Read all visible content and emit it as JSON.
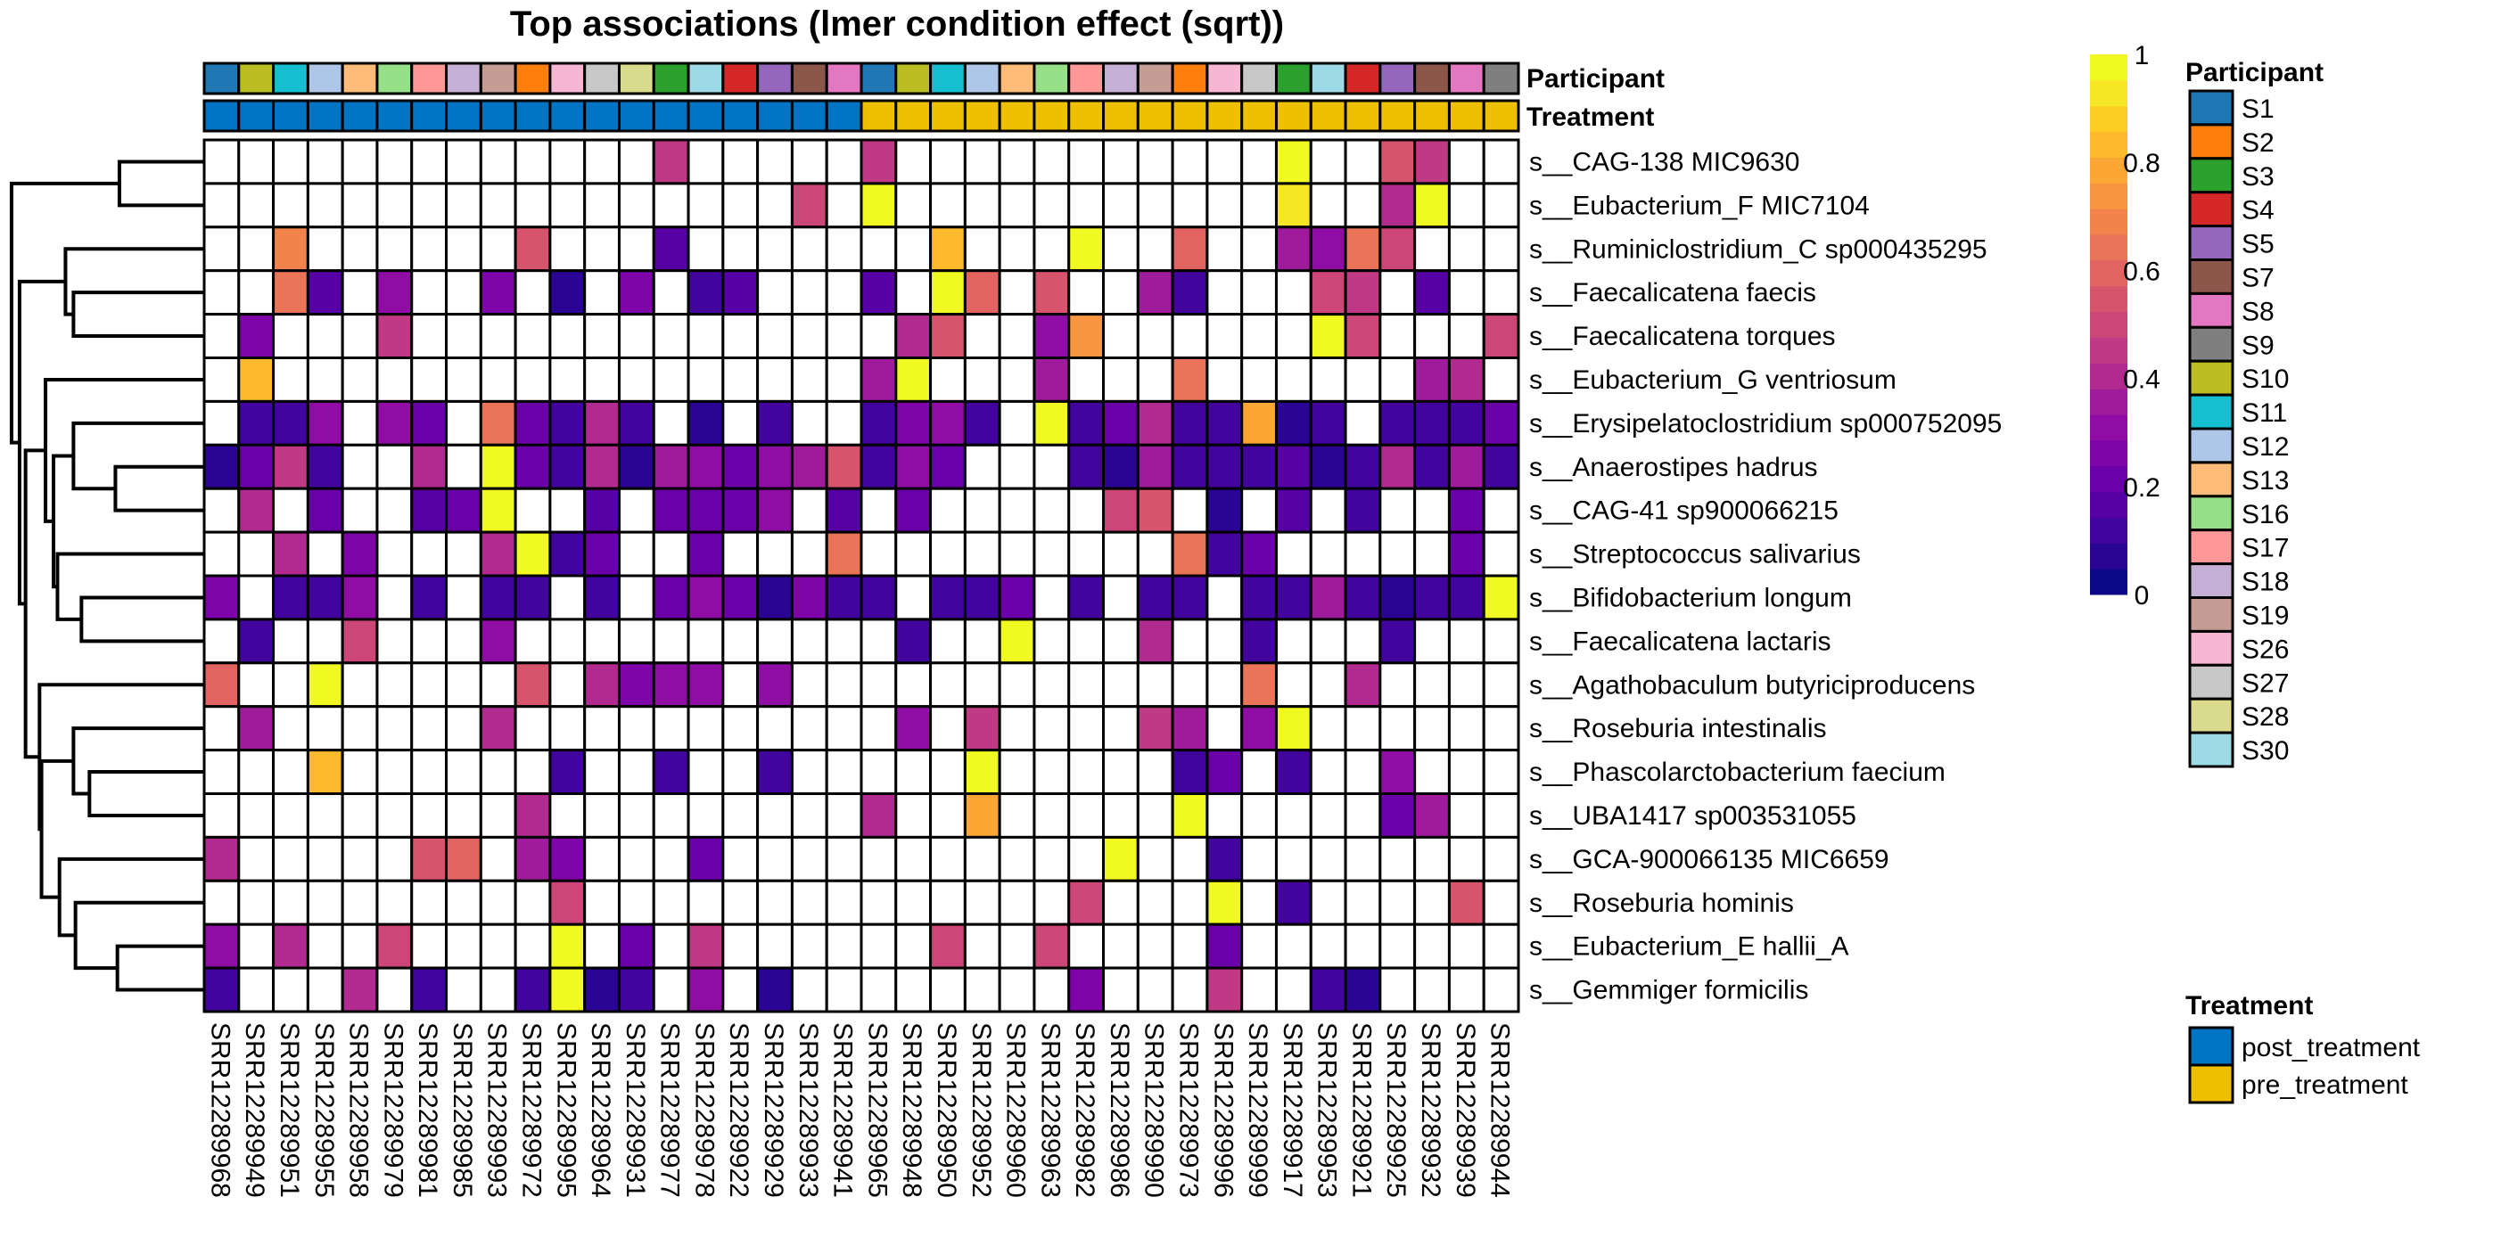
{
  "chart_data": {
    "type": "heatmap",
    "title": "Top associations (lmer condition effect (sqrt))",
    "value_range": [
      0,
      1
    ],
    "colormap": "plasma",
    "colorbar_ticks": [
      "0",
      "0.2",
      "0.4",
      "0.6",
      "0.8",
      "1"
    ],
    "colorbar_tick_values": [
      0,
      0.2,
      0.4,
      0.6,
      0.8,
      1
    ],
    "missing_color": "#ffffff",
    "columns": [
      "SRR12289968",
      "SRR12289949",
      "SRR12289951",
      "SRR12289955",
      "SRR12289958",
      "SRR12289979",
      "SRR12289981",
      "SRR12289985",
      "SRR12289993",
      "SRR12289972",
      "SRR12289995",
      "SRR12289964",
      "SRR12289931",
      "SRR12289977",
      "SRR12289978",
      "SRR12289922",
      "SRR12289929",
      "SRR12289933",
      "SRR12289941",
      "SRR12289965",
      "SRR12289948",
      "SRR12289950",
      "SRR12289952",
      "SRR12289960",
      "SRR12289963",
      "SRR12289982",
      "SRR12289986",
      "SRR12289990",
      "SRR12289973",
      "SRR12289996",
      "SRR12289999",
      "SRR12289917",
      "SRR12289953",
      "SRR12289921",
      "SRR12289925",
      "SRR12289932",
      "SRR12289939",
      "SRR12289944"
    ],
    "rows": [
      "s__CAG-138 MIC9630",
      "s__Eubacterium_F MIC7104",
      "s__Ruminiclostridium_C sp000435295",
      "s__Faecalicatena faecis",
      "s__Faecalicatena torques",
      "s__Eubacterium_G ventriosum",
      "s__Erysipelatoclostridium sp000752095",
      "s__Anaerostipes hadrus",
      "s__CAG-41 sp900066215",
      "s__Streptococcus salivarius",
      "s__Bifidobacterium longum",
      "s__Faecalicatena lactaris",
      "s__Agathobaculum butyriciproducens",
      "s__Roseburia intestinalis",
      "s__Phascolarctobacterium faecium",
      "s__UBA1417 sp003531055",
      "s__GCA-900066135 MIC6659",
      "s__Roseburia hominis",
      "s__Eubacterium_E hallii_A",
      "s__Gemmiger formicilis"
    ],
    "values": [
      [
        null,
        null,
        null,
        null,
        null,
        null,
        null,
        null,
        null,
        null,
        null,
        null,
        null,
        0.45,
        null,
        null,
        null,
        null,
        null,
        0.47,
        null,
        null,
        null,
        null,
        null,
        null,
        null,
        null,
        null,
        null,
        null,
        1.0,
        null,
        null,
        0.55,
        0.45,
        null,
        null
      ],
      [
        null,
        null,
        null,
        null,
        null,
        null,
        null,
        null,
        null,
        null,
        null,
        null,
        null,
        null,
        null,
        null,
        null,
        0.5,
        null,
        1.0,
        null,
        null,
        null,
        null,
        null,
        null,
        null,
        null,
        null,
        null,
        null,
        0.95,
        null,
        null,
        0.4,
        1.0,
        null,
        null
      ],
      [
        null,
        null,
        0.7,
        null,
        null,
        null,
        null,
        null,
        null,
        0.55,
        null,
        null,
        null,
        0.15,
        null,
        null,
        null,
        null,
        null,
        null,
        null,
        0.85,
        null,
        null,
        null,
        1.0,
        null,
        null,
        0.6,
        null,
        null,
        0.35,
        0.28,
        0.65,
        0.5,
        null,
        null,
        null
      ],
      [
        null,
        null,
        0.65,
        0.15,
        null,
        0.3,
        null,
        null,
        0.25,
        null,
        0.03,
        null,
        0.25,
        null,
        0.1,
        0.15,
        null,
        null,
        null,
        0.15,
        null,
        1.0,
        0.6,
        null,
        0.55,
        null,
        null,
        0.35,
        0.12,
        null,
        null,
        null,
        0.5,
        0.45,
        null,
        0.15,
        null,
        null
      ],
      [
        null,
        0.25,
        null,
        null,
        null,
        0.45,
        null,
        null,
        null,
        null,
        null,
        null,
        null,
        null,
        null,
        null,
        null,
        null,
        null,
        null,
        0.4,
        0.55,
        null,
        null,
        0.28,
        0.75,
        null,
        null,
        null,
        null,
        null,
        null,
        1.0,
        0.5,
        null,
        null,
        null,
        0.5
      ],
      [
        null,
        0.85,
        null,
        null,
        null,
        null,
        null,
        null,
        null,
        null,
        null,
        null,
        null,
        null,
        null,
        null,
        null,
        null,
        null,
        0.35,
        1.0,
        null,
        null,
        null,
        0.35,
        null,
        null,
        null,
        0.65,
        null,
        null,
        null,
        null,
        null,
        null,
        0.35,
        0.4,
        null
      ],
      [
        null,
        0.12,
        0.12,
        0.3,
        null,
        0.3,
        0.18,
        null,
        0.65,
        0.2,
        0.08,
        0.38,
        0.12,
        null,
        0.04,
        null,
        0.12,
        null,
        null,
        0.12,
        0.25,
        0.3,
        0.1,
        null,
        1.0,
        0.08,
        0.18,
        0.4,
        0.1,
        0.08,
        0.8,
        0.03,
        0.08,
        null,
        0.1,
        0.1,
        0.08,
        0.18
      ],
      [
        0.03,
        0.18,
        0.45,
        0.08,
        null,
        null,
        0.4,
        null,
        1.0,
        0.18,
        0.1,
        0.4,
        0.03,
        0.35,
        0.3,
        0.2,
        0.3,
        0.35,
        0.55,
        0.12,
        0.28,
        0.22,
        null,
        null,
        null,
        0.08,
        0.03,
        0.35,
        0.08,
        0.08,
        0.12,
        0.14,
        0.03,
        0.12,
        0.4,
        0.08,
        0.35,
        0.12
      ],
      [
        null,
        0.4,
        null,
        0.22,
        null,
        null,
        0.14,
        0.18,
        1.0,
        null,
        null,
        0.14,
        null,
        0.18,
        0.18,
        0.22,
        0.28,
        null,
        0.16,
        null,
        0.22,
        null,
        null,
        null,
        null,
        null,
        0.5,
        0.55,
        null,
        0.03,
        null,
        0.14,
        null,
        0.12,
        null,
        null,
        0.22,
        null
      ],
      [
        null,
        null,
        0.4,
        null,
        0.24,
        null,
        null,
        null,
        0.4,
        1.0,
        0.08,
        0.18,
        null,
        null,
        0.18,
        null,
        null,
        null,
        0.65,
        null,
        null,
        null,
        null,
        null,
        null,
        null,
        null,
        null,
        0.65,
        0.08,
        0.22,
        null,
        null,
        null,
        null,
        null,
        0.2,
        null
      ],
      [
        0.25,
        null,
        0.12,
        0.12,
        0.3,
        null,
        0.08,
        null,
        0.12,
        0.08,
        null,
        0.12,
        null,
        0.18,
        0.28,
        0.2,
        0.03,
        0.25,
        0.1,
        0.08,
        null,
        0.08,
        0.08,
        0.18,
        null,
        0.08,
        null,
        0.12,
        0.08,
        null,
        0.08,
        0.08,
        0.35,
        0.08,
        0.03,
        0.08,
        0.08,
        1.0
      ],
      [
        null,
        0.12,
        null,
        null,
        0.5,
        null,
        null,
        null,
        0.3,
        null,
        null,
        null,
        null,
        null,
        null,
        null,
        null,
        null,
        null,
        null,
        0.12,
        null,
        null,
        1.0,
        null,
        null,
        null,
        0.4,
        null,
        null,
        0.08,
        null,
        null,
        null,
        0.12,
        null,
        null,
        null
      ],
      [
        0.6,
        null,
        null,
        1.0,
        null,
        null,
        null,
        null,
        null,
        0.55,
        null,
        0.42,
        0.25,
        0.3,
        0.3,
        null,
        0.3,
        null,
        null,
        null,
        null,
        null,
        null,
        null,
        null,
        null,
        null,
        null,
        null,
        null,
        0.65,
        null,
        null,
        0.4,
        null,
        null,
        null,
        null
      ],
      [
        null,
        0.35,
        null,
        null,
        null,
        null,
        null,
        null,
        0.4,
        null,
        null,
        null,
        null,
        null,
        null,
        null,
        null,
        null,
        null,
        null,
        0.28,
        null,
        0.45,
        null,
        null,
        null,
        null,
        0.45,
        0.35,
        null,
        0.3,
        1.0,
        null,
        null,
        null,
        null,
        null,
        null
      ],
      [
        null,
        null,
        null,
        0.85,
        null,
        null,
        null,
        null,
        null,
        null,
        0.08,
        null,
        null,
        0.08,
        null,
        null,
        0.1,
        null,
        null,
        null,
        null,
        null,
        1.0,
        null,
        null,
        null,
        null,
        null,
        0.12,
        0.18,
        null,
        0.12,
        null,
        null,
        0.28,
        null,
        null,
        null
      ],
      [
        null,
        null,
        null,
        null,
        null,
        null,
        null,
        null,
        null,
        0.4,
        null,
        null,
        null,
        null,
        null,
        null,
        null,
        null,
        null,
        0.4,
        null,
        null,
        0.78,
        null,
        null,
        null,
        null,
        null,
        1.0,
        null,
        null,
        null,
        null,
        null,
        0.22,
        0.35,
        null,
        null
      ],
      [
        0.4,
        null,
        null,
        null,
        null,
        null,
        0.55,
        0.6,
        null,
        0.35,
        0.25,
        null,
        null,
        null,
        0.18,
        null,
        null,
        null,
        null,
        null,
        null,
        null,
        null,
        null,
        null,
        null,
        1.0,
        null,
        null,
        0.12,
        null,
        null,
        null,
        null,
        null,
        null,
        null,
        null
      ],
      [
        null,
        null,
        null,
        null,
        null,
        null,
        null,
        null,
        null,
        null,
        0.5,
        null,
        null,
        null,
        null,
        null,
        null,
        null,
        null,
        null,
        null,
        null,
        null,
        null,
        null,
        0.5,
        null,
        null,
        null,
        1.0,
        null,
        0.08,
        null,
        null,
        null,
        null,
        0.55,
        null
      ],
      [
        0.3,
        null,
        0.4,
        null,
        null,
        0.5,
        null,
        null,
        null,
        null,
        1.0,
        null,
        0.18,
        null,
        0.45,
        null,
        null,
        null,
        null,
        null,
        null,
        0.5,
        null,
        null,
        0.5,
        null,
        null,
        null,
        null,
        0.18,
        null,
        null,
        null,
        null,
        null,
        null,
        null,
        null
      ],
      [
        0.1,
        null,
        null,
        null,
        0.4,
        null,
        0.08,
        null,
        null,
        0.1,
        1.0,
        0.03,
        0.12,
        null,
        0.28,
        null,
        0.03,
        null,
        null,
        null,
        null,
        null,
        null,
        null,
        null,
        0.25,
        null,
        null,
        null,
        0.45,
        null,
        null,
        0.12,
        0.03,
        null,
        null,
        null,
        null
      ]
    ],
    "annotations": {
      "labels": [
        "Participant",
        "Treatment"
      ],
      "participant": [
        "S1",
        "S10",
        "S11",
        "S12",
        "S13",
        "S16",
        "S17",
        "S18",
        "S19",
        "S2",
        "S26",
        "S27",
        "S28",
        "S3",
        "S30",
        "S4",
        "S5",
        "S7",
        "S8",
        "S1",
        "S10",
        "S11",
        "S12",
        "S13",
        "S16",
        "S17",
        "S18",
        "S19",
        "S2",
        "S26",
        "S27",
        "S3",
        "S30",
        "S4",
        "S5",
        "S7",
        "S8",
        "S9"
      ],
      "treatment": [
        "post_treatment",
        "post_treatment",
        "post_treatment",
        "post_treatment",
        "post_treatment",
        "post_treatment",
        "post_treatment",
        "post_treatment",
        "post_treatment",
        "post_treatment",
        "post_treatment",
        "post_treatment",
        "post_treatment",
        "post_treatment",
        "post_treatment",
        "post_treatment",
        "post_treatment",
        "post_treatment",
        "post_treatment",
        "pre_treatment",
        "pre_treatment",
        "pre_treatment",
        "pre_treatment",
        "pre_treatment",
        "pre_treatment",
        "pre_treatment",
        "pre_treatment",
        "pre_treatment",
        "pre_treatment",
        "pre_treatment",
        "pre_treatment",
        "pre_treatment",
        "pre_treatment",
        "pre_treatment",
        "pre_treatment",
        "pre_treatment",
        "pre_treatment",
        "pre_treatment"
      ]
    },
    "row_dendrogram": {
      "merges": [
        [
          0,
          1,
          0.42
        ],
        [
          3,
          4,
          0.65
        ],
        [
          2,
          "n1",
          0.69
        ],
        [
          7,
          8,
          0.44
        ],
        [
          6,
          "n3",
          0.65
        ],
        [
          10,
          11,
          0.61
        ],
        [
          9,
          "n5",
          0.73
        ],
        [
          "n4",
          "n6",
          0.75
        ],
        [
          5,
          "n7",
          0.79
        ],
        [
          14,
          15,
          0.57
        ],
        [
          13,
          "n9",
          0.65
        ],
        [
          18,
          19,
          0.43
        ],
        [
          17,
          "n11",
          0.64
        ],
        [
          16,
          "n12",
          0.72
        ],
        [
          "n10",
          "n13",
          0.81
        ],
        [
          12,
          "n14",
          0.82
        ],
        [
          "n8",
          "n15",
          0.89
        ],
        [
          "n2",
          "n16",
          0.92
        ],
        [
          "n0",
          "n17",
          0.96
        ]
      ]
    }
  },
  "legends": {
    "colorbar_title": "",
    "participant": {
      "title": "Participant",
      "items": [
        {
          "label": "S1",
          "color": "#1f77b4"
        },
        {
          "label": "S2",
          "color": "#ff7f0e"
        },
        {
          "label": "S3",
          "color": "#2ca02c"
        },
        {
          "label": "S4",
          "color": "#d62728"
        },
        {
          "label": "S5",
          "color": "#9467bd"
        },
        {
          "label": "S7",
          "color": "#8c564b"
        },
        {
          "label": "S8",
          "color": "#e377c2"
        },
        {
          "label": "S9",
          "color": "#7f7f7f"
        },
        {
          "label": "S10",
          "color": "#bcbd22"
        },
        {
          "label": "S11",
          "color": "#17becf"
        },
        {
          "label": "S12",
          "color": "#aec7e8"
        },
        {
          "label": "S13",
          "color": "#ffbb78"
        },
        {
          "label": "S16",
          "color": "#98df8a"
        },
        {
          "label": "S17",
          "color": "#ff9896"
        },
        {
          "label": "S18",
          "color": "#c5b0d5"
        },
        {
          "label": "S19",
          "color": "#c49c94"
        },
        {
          "label": "S26",
          "color": "#f7b6d2"
        },
        {
          "label": "S27",
          "color": "#c7c7c7"
        },
        {
          "label": "S28",
          "color": "#dbdb8d"
        },
        {
          "label": "S30",
          "color": "#9edae5"
        }
      ]
    },
    "treatment": {
      "title": "Treatment",
      "items": [
        {
          "label": "post_treatment",
          "color": "#0073c2"
        },
        {
          "label": "pre_treatment",
          "color": "#efc000"
        }
      ]
    }
  }
}
